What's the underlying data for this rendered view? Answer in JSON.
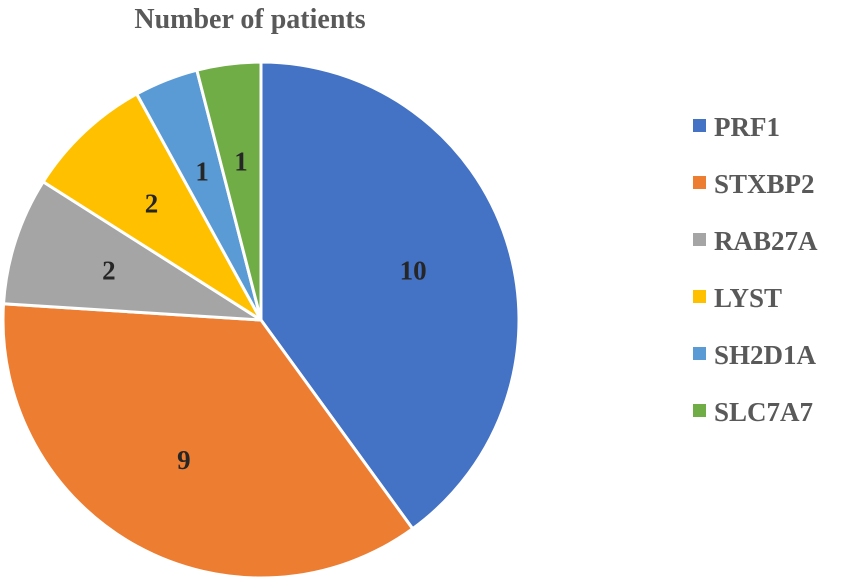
{
  "chart_data": {
    "type": "pie",
    "title": "Number of patients",
    "categories": [
      "PRF1",
      "STXBP2",
      "RAB27A",
      "LYST",
      "SH2D1A",
      "SLC7A7"
    ],
    "values": [
      10,
      9,
      2,
      2,
      1,
      1
    ],
    "colors": [
      "#4472C4",
      "#ED7D31",
      "#A5A5A5",
      "#FFC000",
      "#5B9BD5",
      "#70AD47"
    ],
    "start_angle_deg": 0,
    "direction": "clockwise",
    "data_labels": true,
    "legend_position": "right"
  }
}
